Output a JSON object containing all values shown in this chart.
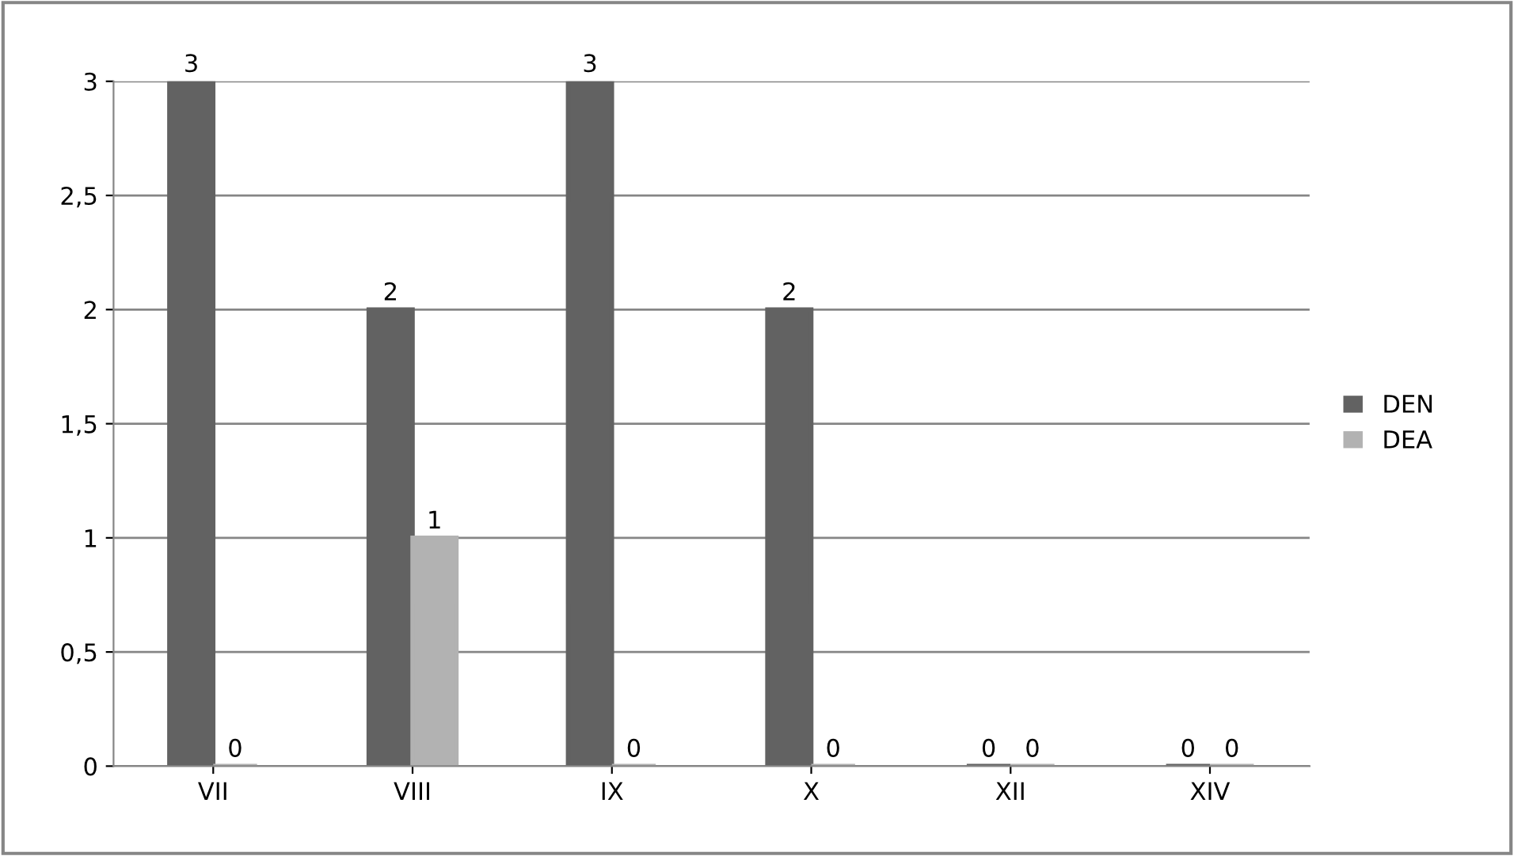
{
  "chart_data": {
    "type": "bar",
    "categories": [
      "VII",
      "VIII",
      "IX",
      "X",
      "XII",
      "XIV"
    ],
    "series": [
      {
        "name": "DEN",
        "color": "#626262",
        "values": [
          3,
          2,
          3,
          2,
          0,
          0
        ]
      },
      {
        "name": "DEA",
        "color": "#b2b2b2",
        "values": [
          0,
          1,
          0,
          0,
          0,
          0
        ]
      }
    ],
    "ylim": [
      0,
      3
    ],
    "yticks": [
      0,
      {
        "value": 0.5,
        "label": "0,5"
      },
      1,
      {
        "value": 1.5,
        "label": "1,5"
      },
      2,
      {
        "value": 2.5,
        "label": "2,5"
      },
      3
    ],
    "grid": "y",
    "legend": "right",
    "data_labels": true
  }
}
